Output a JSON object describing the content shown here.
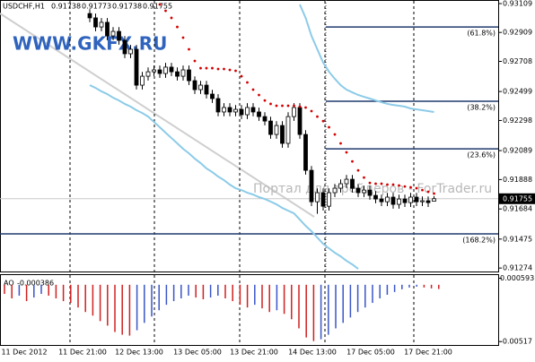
{
  "header": {
    "symbol": "USDCHF,H1"
  },
  "watermarks": [
    "WWW.GKFX.RU",
    "Портал для трейдеров - ForTrader.ru"
  ],
  "x_labels": [
    "11 Dec 2012",
    "11 Dec 21:00",
    "12 Dec 13:00",
    "13 Dec 05:00",
    "13 Dec 21:00",
    "14 Dec 13:00",
    "17 Dec 05:00",
    "17 Dec 21:00"
  ],
  "chart_data": [
    {
      "type": "candlestick",
      "ylim": [
        0.9125,
        0.93134
      ],
      "yticks": [
        0.93109,
        0.92909,
        0.92708,
        0.92499,
        0.92298,
        0.92089,
        0.91888,
        0.91684,
        0.91475,
        0.91274
      ],
      "up_color": "#ffffff",
      "down_color": "#000000",
      "open": [
        0.9304,
        0.9301,
        0.92947,
        0.92979,
        0.92885,
        0.92916,
        0.92854,
        0.92761,
        0.92792,
        0.92543,
        0.92605,
        0.92636,
        0.92649,
        0.92624,
        0.92668,
        0.92636,
        0.92605,
        0.92649,
        0.92574,
        0.92512,
        0.92543,
        0.92481,
        0.9245,
        0.92357,
        0.92388,
        0.92357,
        0.92375,
        0.92338,
        0.92388,
        0.92357,
        0.92325,
        0.92294,
        0.92201,
        0.92263,
        0.92139,
        0.92325,
        0.92388,
        0.92201,
        0.91952,
        0.91734,
        0.91797,
        0.91703,
        0.91797,
        0.91828,
        0.91859,
        0.9189,
        0.91828,
        0.91797,
        0.91815,
        0.91778,
        0.91753,
        0.91734,
        0.91766,
        0.91716,
        0.91753,
        0.91728,
        0.91766,
        0.91734,
        0.91741,
        0.91738
      ],
      "high": [
        0.9307,
        0.9304,
        0.93009,
        0.93009,
        0.92946,
        0.92946,
        0.92884,
        0.92822,
        0.92822,
        0.92635,
        0.92666,
        0.92679,
        0.92679,
        0.92698,
        0.92698,
        0.92666,
        0.92679,
        0.92679,
        0.92604,
        0.92573,
        0.92573,
        0.92511,
        0.9248,
        0.92418,
        0.92418,
        0.92405,
        0.92405,
        0.92418,
        0.92418,
        0.92387,
        0.92355,
        0.92324,
        0.92293,
        0.92293,
        0.92355,
        0.92418,
        0.92418,
        0.92231,
        0.91982,
        0.91827,
        0.91827,
        0.91827,
        0.91858,
        0.91889,
        0.9192,
        0.9192,
        0.91858,
        0.91845,
        0.91845,
        0.91808,
        0.91783,
        0.91796,
        0.91796,
        0.91783,
        0.91783,
        0.91796,
        0.91796,
        0.91771,
        0.91771,
        0.91773
      ],
      "low": [
        0.9298,
        0.92917,
        0.92917,
        0.92855,
        0.92855,
        0.92824,
        0.92731,
        0.92731,
        0.92513,
        0.92513,
        0.92575,
        0.92606,
        0.92594,
        0.92594,
        0.92606,
        0.92575,
        0.92575,
        0.92544,
        0.92482,
        0.92482,
        0.92451,
        0.9242,
        0.92327,
        0.92327,
        0.92327,
        0.92327,
        0.92308,
        0.92308,
        0.92327,
        0.92295,
        0.92264,
        0.92171,
        0.92171,
        0.92109,
        0.92109,
        0.92295,
        0.92171,
        0.91922,
        0.91704,
        0.9165,
        0.91673,
        0.91673,
        0.91767,
        0.91798,
        0.91829,
        0.91798,
        0.91767,
        0.91767,
        0.91748,
        0.91723,
        0.91704,
        0.91704,
        0.91686,
        0.91686,
        0.91698,
        0.91698,
        0.91704,
        0.91704,
        0.91698,
        0.91738
      ],
      "close": [
        0.9301,
        0.92947,
        0.92979,
        0.92885,
        0.92916,
        0.92854,
        0.92761,
        0.92792,
        0.92543,
        0.92605,
        0.92636,
        0.92649,
        0.92624,
        0.92668,
        0.92636,
        0.92605,
        0.92649,
        0.92574,
        0.92512,
        0.92543,
        0.92481,
        0.9245,
        0.92357,
        0.92388,
        0.92357,
        0.92375,
        0.92338,
        0.92388,
        0.92357,
        0.92325,
        0.92294,
        0.92201,
        0.92263,
        0.92139,
        0.92325,
        0.92388,
        0.92201,
        0.91952,
        0.91734,
        0.91797,
        0.91703,
        0.91797,
        0.91828,
        0.91859,
        0.9189,
        0.91828,
        0.91797,
        0.91815,
        0.91778,
        0.91753,
        0.91734,
        0.91766,
        0.91716,
        0.91753,
        0.91728,
        0.91766,
        0.91734,
        0.91741,
        0.91728,
        0.91755
      ],
      "sar": {
        "color": "#d40000",
        "values": [
          null,
          null,
          null,
          null,
          null,
          null,
          null,
          null,
          null,
          null,
          null,
          null,
          0.93103,
          0.93059,
          0.9301,
          0.92947,
          0.92873,
          0.92792,
          0.92711,
          0.92661,
          0.92661,
          0.92661,
          0.92655,
          0.92655,
          0.92649,
          0.92643,
          0.92605,
          0.92562,
          0.92512,
          0.92475,
          0.92437,
          0.92413,
          0.924,
          0.924,
          0.924,
          0.924,
          0.92394,
          0.92388,
          0.92363,
          0.92325,
          0.92294,
          0.92251,
          0.92201,
          0.92139,
          0.92077,
          0.92014,
          0.91952,
          0.91902,
          0.91865,
          0.91859,
          0.91859,
          0.91853,
          0.91853,
          0.91847,
          0.9184,
          0.91834,
          0.91828,
          0.91815,
          0.91803,
          0.91791
        ]
      },
      "bands": {
        "color": "#8ccbe8",
        "upper": [
          null,
          null,
          null,
          null,
          null,
          null,
          null,
          null,
          null,
          null,
          null,
          null,
          null,
          null,
          null,
          null,
          null,
          null,
          null,
          null,
          null,
          null,
          null,
          null,
          null,
          null,
          null,
          null,
          null,
          null,
          null,
          null,
          null,
          null,
          null,
          null,
          0.93103,
          0.9301,
          0.92885,
          0.92792,
          0.92699,
          0.92636,
          0.92587,
          0.92543,
          0.92512,
          0.92493,
          0.92475,
          0.92462,
          0.9245,
          0.92437,
          0.92425,
          0.92413,
          0.92406,
          0.924,
          0.92394,
          0.92381,
          0.92375,
          0.92369,
          0.92363,
          0.92357
        ],
        "lower": [
          0.92543,
          0.92524,
          0.925,
          0.92481,
          0.92456,
          0.92437,
          0.92413,
          0.92394,
          0.92369,
          0.9235,
          0.92325,
          0.92288,
          0.92251,
          0.92213,
          0.92176,
          0.92139,
          0.92101,
          0.9207,
          0.92033,
          0.92002,
          0.91965,
          0.9194,
          0.91909,
          0.91884,
          0.91853,
          0.91828,
          0.91815,
          0.91797,
          0.91784,
          0.91766,
          0.91753,
          0.91735,
          0.91716,
          0.91691,
          0.91672,
          0.91654,
          0.9161,
          0.91567,
          0.91529,
          0.91486,
          0.91442,
          0.91411,
          0.9138,
          0.91355,
          0.91324,
          0.91299,
          0.91268,
          null,
          null,
          null,
          null,
          null,
          null,
          null,
          null,
          null,
          null,
          null,
          null,
          null
        ]
      },
      "fib_color": "#1f3a6e",
      "fib_levels": [
        {
          "price": 0.92947,
          "label": "(61.8%)"
        },
        {
          "price": 0.92431,
          "label": "(38.2%)"
        },
        {
          "price": 0.92101,
          "label": "(23.6%)"
        },
        {
          "price": 0.91511,
          "label": "(168.2%)"
        }
      ]
    },
    {
      "type": "histogram",
      "name": "AO",
      "ylim": [
        -0.0054,
        0.0008
      ],
      "yticks": [
        0.000593,
        -0.00517
      ],
      "up_color": "#3a55c8",
      "down_color": "#d02020",
      "values": [
        -0.00083,
        -0.00124,
        -0.00099,
        -0.00149,
        -0.00116,
        -0.00083,
        -0.00099,
        -0.00124,
        -0.00149,
        -0.00165,
        -0.00207,
        -0.00248,
        -0.00281,
        -0.00331,
        -0.00372,
        -0.0043,
        -0.00455,
        -0.00463,
        -0.00414,
        -0.00347,
        -0.00289,
        -0.00232,
        -0.00182,
        -0.00149,
        -0.00124,
        -0.00099,
        -0.00116,
        -0.00132,
        -0.00116,
        -0.00099,
        -0.00124,
        -0.00149,
        -0.00182,
        -0.00207,
        -0.00182,
        -0.00215,
        -0.00248,
        -0.00232,
        -0.00265,
        -0.00314,
        -0.00397,
        -0.0048,
        -0.00513,
        -0.00496,
        -0.00455,
        -0.00397,
        -0.00347,
        -0.00298,
        -0.00248,
        -0.00207,
        -0.00165,
        -0.00124,
        -0.00091,
        -0.00066,
        -0.00041,
        -0.00025,
        -0.00017,
        -0.00025,
        -0.00033,
        -0.000386
      ]
    }
  ]
}
